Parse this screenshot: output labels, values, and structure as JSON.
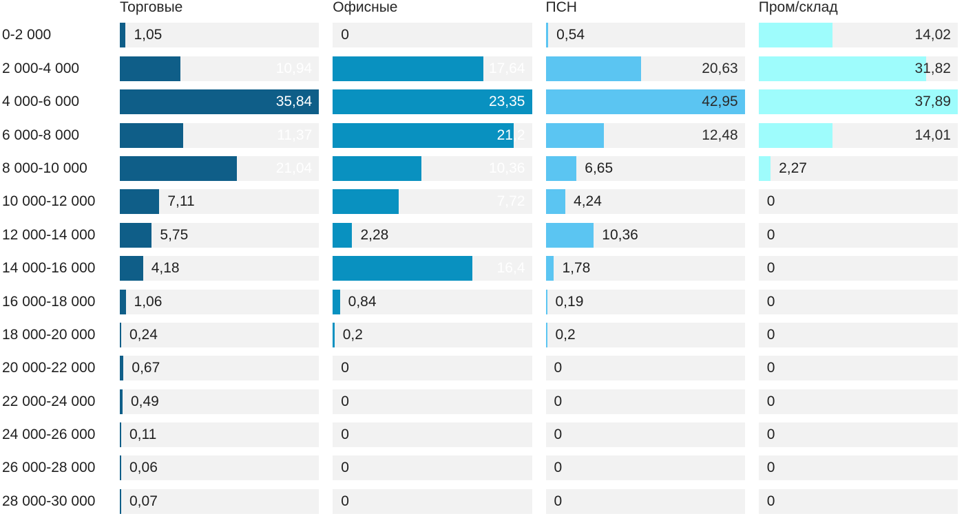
{
  "chart_data": {
    "type": "bar",
    "orientation": "horizontal",
    "title": "",
    "xlabel": "",
    "ylabel": "",
    "grid": false,
    "legend_position": "column-headers",
    "scaling_note": "each column is scaled independently so its maximum value fills the full track width",
    "decimal_separator": ",",
    "track_color": "#F2F2F2",
    "text_color": "#1F1F1F",
    "categories": [
      "0-2 000",
      "2 000-4 000",
      "4 000-6 000",
      "6 000-8 000",
      "8 000-10 000",
      "10 000-12 000",
      "12 000-14 000",
      "14 000-16 000",
      "16 000-18 000",
      "18 000-20 000",
      "20 000-22 000",
      "22 000-24 000",
      "24 000-26 000",
      "26 000-28 000",
      "28 000-30 000"
    ],
    "series": [
      {
        "name": "Торговые",
        "color": "#0F5E88",
        "label_color_inside": "#FFFFFF",
        "values": [
          1.05,
          10.94,
          35.84,
          11.37,
          21.04,
          7.11,
          5.75,
          4.18,
          1.06,
          0.24,
          0.67,
          0.49,
          0.11,
          0.06,
          0.07
        ]
      },
      {
        "name": "Офисные",
        "color": "#0991C0",
        "label_color_inside": "#FFFFFF",
        "values": [
          0,
          17.64,
          23.35,
          21.2,
          10.36,
          7.72,
          2.28,
          16.4,
          0.84,
          0.2,
          0,
          0,
          0,
          0,
          0
        ]
      },
      {
        "name": "ПСН",
        "color": "#5BC5F2",
        "label_color_inside": "#2B2B2B",
        "values": [
          0.54,
          20.63,
          42.95,
          12.48,
          6.65,
          4.24,
          10.36,
          1.78,
          0.19,
          0.2,
          0,
          0,
          0,
          0,
          0
        ]
      },
      {
        "name": "Пром/склад",
        "color": "#9EFCFC",
        "label_color_inside": "#2B2B2B",
        "values": [
          14.02,
          31.82,
          37.89,
          14.01,
          2.27,
          0,
          0,
          0,
          0,
          0,
          0,
          0,
          0,
          0,
          0
        ]
      }
    ]
  }
}
